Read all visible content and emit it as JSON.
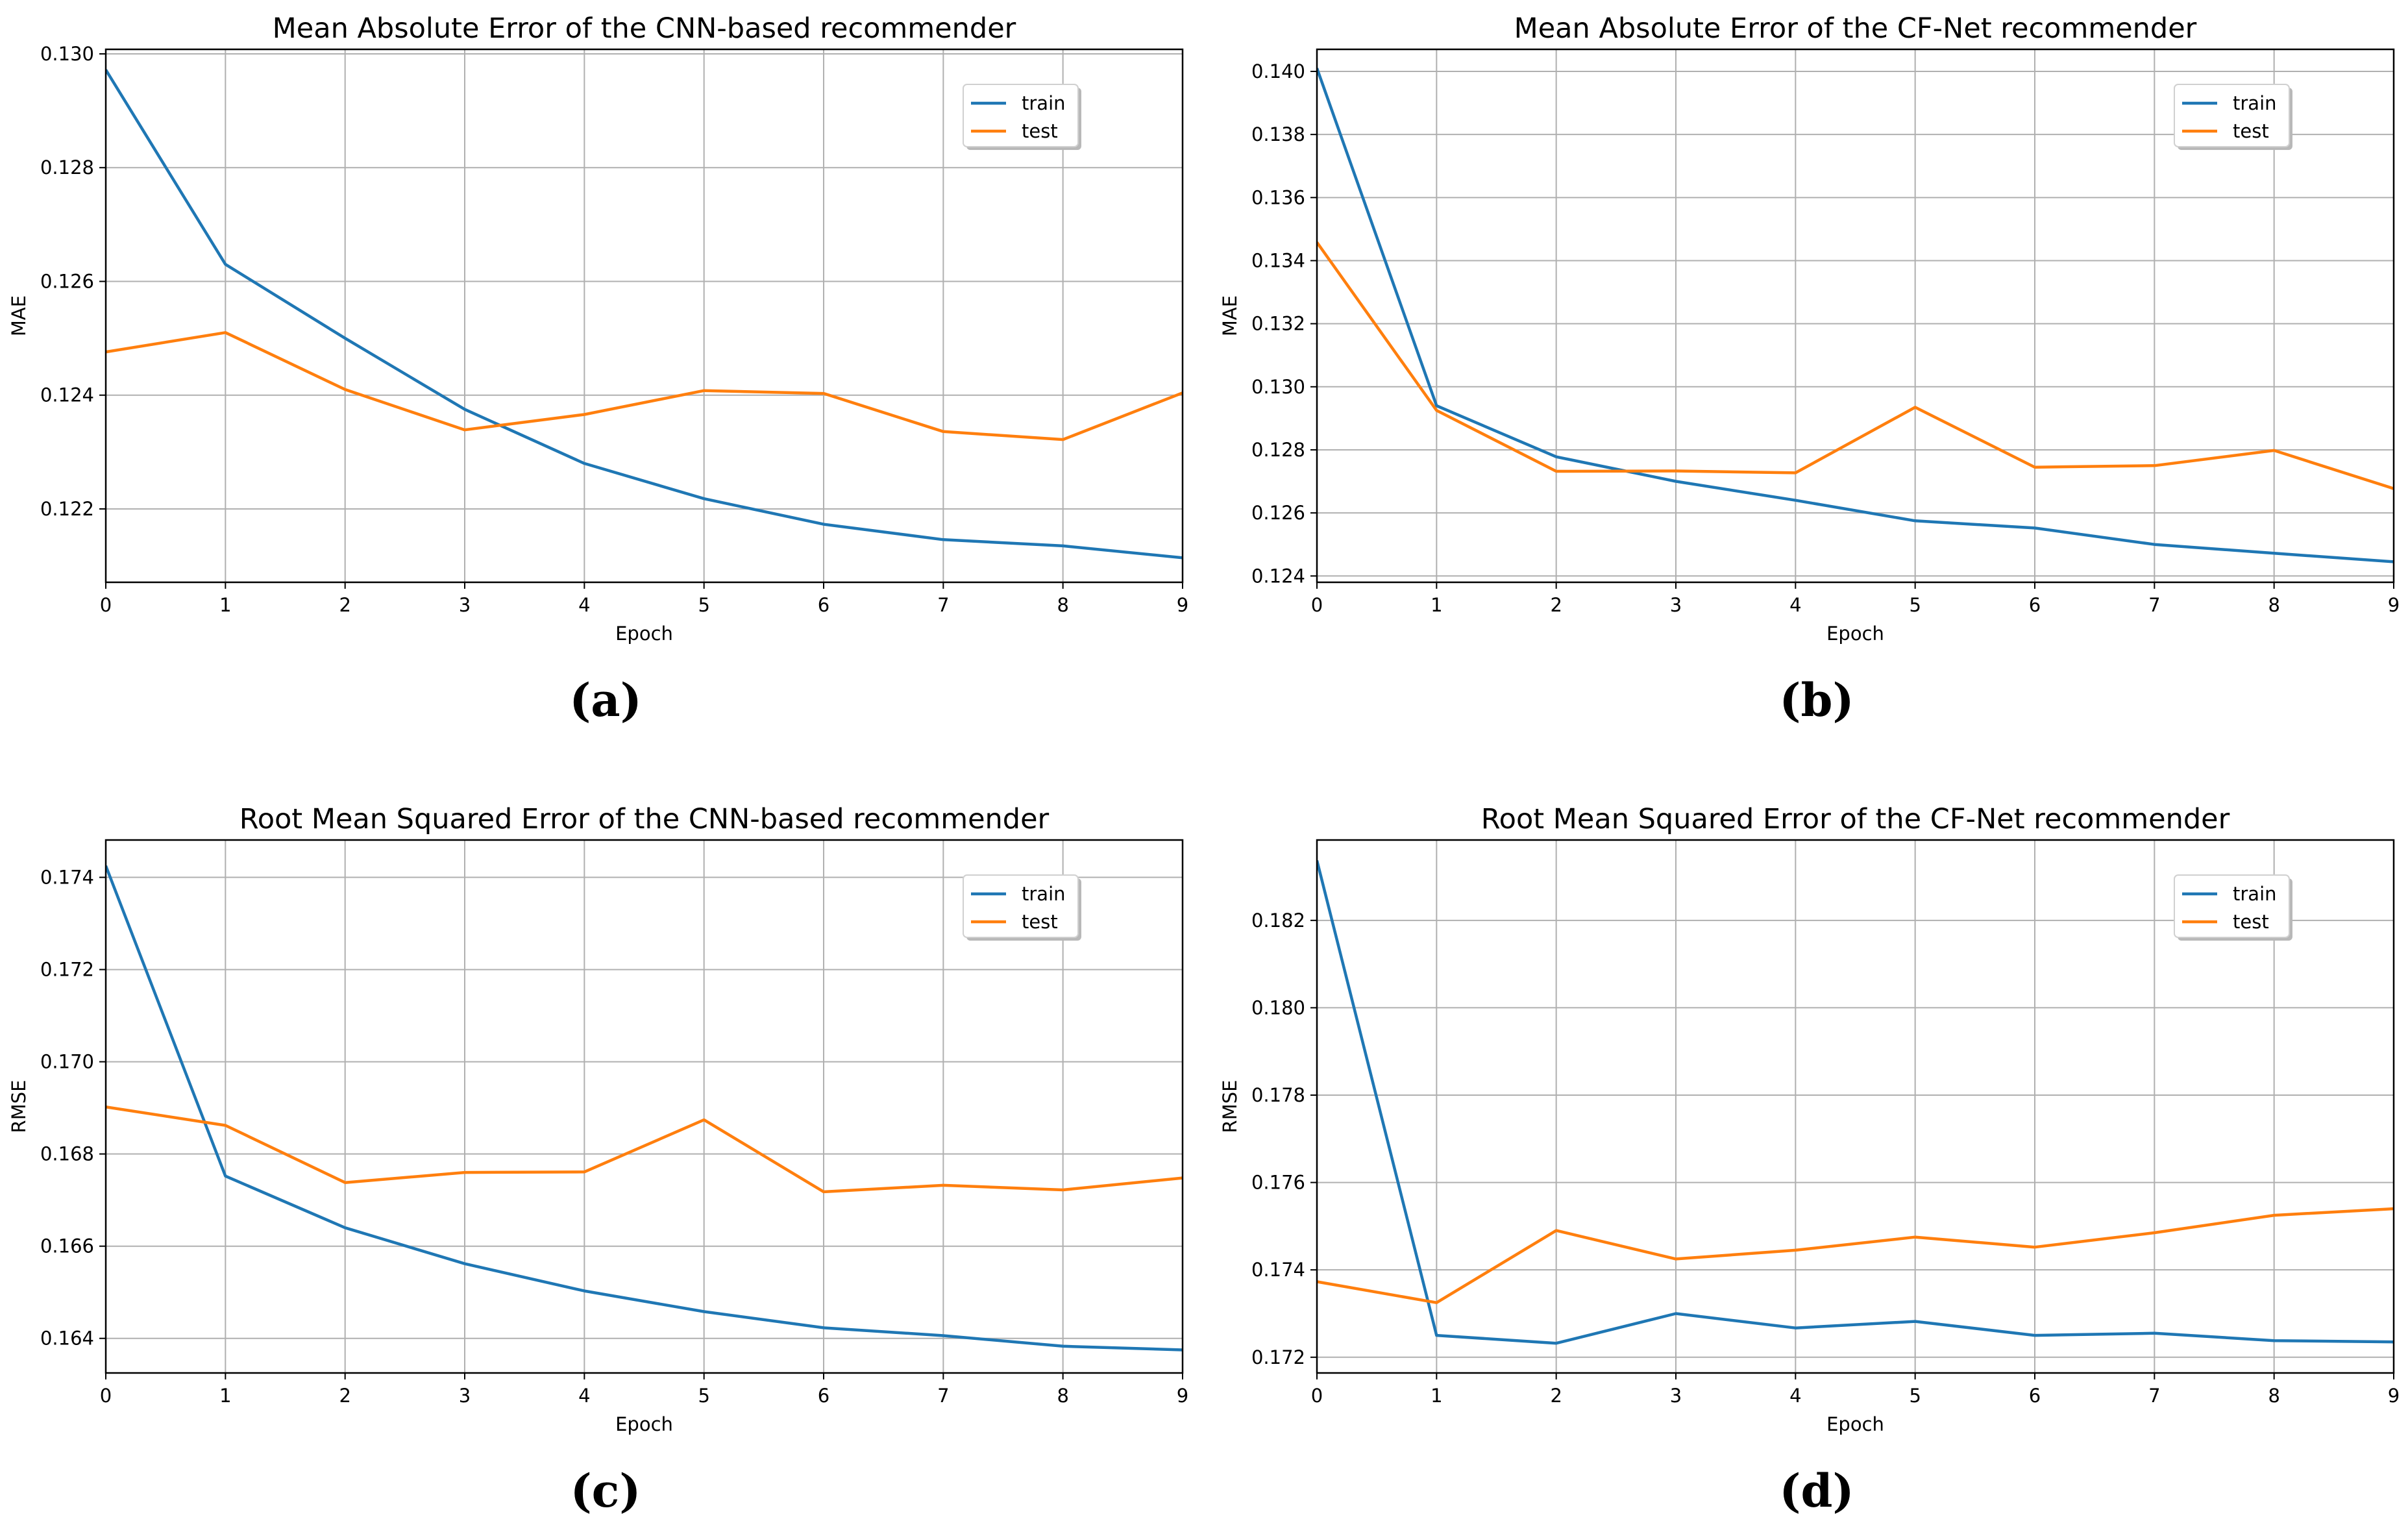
{
  "colors": {
    "train": "#1f77b4",
    "test": "#ff7f0e",
    "grid": "#b0b0b0",
    "axes": "#000000"
  },
  "chart_data": [
    {
      "type": "line",
      "panel": "a",
      "caption": "(a)",
      "title": "Mean Absolute Error of the CNN-based recommender",
      "xlabel": "Epoch",
      "ylabel": "MAE",
      "xlim": [
        0,
        9
      ],
      "ylim": [
        0.12071,
        0.13008
      ],
      "xticks": [
        0,
        1,
        2,
        3,
        4,
        5,
        6,
        7,
        8,
        9
      ],
      "yticks": [
        0.122,
        0.124,
        0.126,
        0.128,
        0.13
      ],
      "ytick_labels": [
        "0.122",
        "0.124",
        "0.126",
        "0.128",
        "0.130"
      ],
      "grid": true,
      "legend_position": "top-right",
      "x": [
        0,
        1,
        2,
        3,
        4,
        5,
        6,
        7,
        8,
        9
      ],
      "series": [
        {
          "name": "train",
          "color": "#1f77b4",
          "values": [
            0.12972,
            0.1263,
            0.125,
            0.12375,
            0.1228,
            0.12218,
            0.12173,
            0.12146,
            0.12135,
            0.12114
          ]
        },
        {
          "name": "test",
          "color": "#ff7f0e",
          "values": [
            0.12476,
            0.1251,
            0.1241,
            0.12339,
            0.12366,
            0.12408,
            0.12403,
            0.12336,
            0.12322,
            0.12404
          ]
        }
      ]
    },
    {
      "type": "line",
      "panel": "b",
      "caption": "(b)",
      "title": "Mean Absolute Error of the CF-Net recommender",
      "xlabel": "Epoch",
      "ylabel": "MAE",
      "xlim": [
        0,
        9
      ],
      "ylim": [
        0.1238,
        0.1407
      ],
      "xticks": [
        0,
        1,
        2,
        3,
        4,
        5,
        6,
        7,
        8,
        9
      ],
      "yticks": [
        0.124,
        0.126,
        0.128,
        0.13,
        0.132,
        0.134,
        0.136,
        0.138,
        0.14
      ],
      "ytick_labels": [
        "0.124",
        "0.126",
        "0.128",
        "0.130",
        "0.132",
        "0.134",
        "0.136",
        "0.138",
        "0.140"
      ],
      "grid": true,
      "legend_position": "top-right",
      "x": [
        0,
        1,
        2,
        3,
        4,
        5,
        6,
        7,
        8,
        9
      ],
      "series": [
        {
          "name": "train",
          "color": "#1f77b4",
          "values": [
            0.1401,
            0.1294,
            0.12778,
            0.127,
            0.1264,
            0.12575,
            0.12552,
            0.125,
            0.12472,
            0.12445
          ]
        },
        {
          "name": "test",
          "color": "#ff7f0e",
          "values": [
            0.13458,
            0.12925,
            0.12732,
            0.12733,
            0.12727,
            0.12935,
            0.12745,
            0.1275,
            0.12798,
            0.12677
          ]
        }
      ]
    },
    {
      "type": "line",
      "panel": "c",
      "caption": "(c)",
      "title": "Root Mean Squared Error of the CNN-based recommender",
      "xlabel": "Epoch",
      "ylabel": "RMSE",
      "xlim": [
        0,
        9
      ],
      "ylim": [
        0.16325,
        0.17481
      ],
      "xticks": [
        0,
        1,
        2,
        3,
        4,
        5,
        6,
        7,
        8,
        9
      ],
      "yticks": [
        0.164,
        0.166,
        0.168,
        0.17,
        0.172,
        0.174
      ],
      "ytick_labels": [
        "0.164",
        "0.166",
        "0.168",
        "0.170",
        "0.172",
        "0.174"
      ],
      "grid": true,
      "legend_position": "top-right",
      "x": [
        0,
        1,
        2,
        3,
        4,
        5,
        6,
        7,
        8,
        9
      ],
      "series": [
        {
          "name": "train",
          "color": "#1f77b4",
          "values": [
            0.17425,
            0.16752,
            0.1664,
            0.16562,
            0.16503,
            0.16458,
            0.16423,
            0.16406,
            0.16383,
            0.16375
          ]
        },
        {
          "name": "test",
          "color": "#ff7f0e",
          "values": [
            0.16902,
            0.16862,
            0.16738,
            0.1676,
            0.16761,
            0.16874,
            0.16718,
            0.16732,
            0.16722,
            0.16748
          ]
        }
      ]
    },
    {
      "type": "line",
      "panel": "d",
      "caption": "(d)",
      "title": "Root Mean Squared Error of the CF-Net recommender",
      "xlabel": "Epoch",
      "ylabel": "RMSE",
      "xlim": [
        0,
        9
      ],
      "ylim": [
        0.17164,
        0.18384
      ],
      "xticks": [
        0,
        1,
        2,
        3,
        4,
        5,
        6,
        7,
        8,
        9
      ],
      "yticks": [
        0.172,
        0.174,
        0.176,
        0.178,
        0.18,
        0.182
      ],
      "ytick_labels": [
        "0.172",
        "0.174",
        "0.176",
        "0.178",
        "0.180",
        "0.182"
      ],
      "grid": true,
      "legend_position": "top-right",
      "x": [
        0,
        1,
        2,
        3,
        4,
        5,
        6,
        7,
        8,
        9
      ],
      "series": [
        {
          "name": "train",
          "color": "#1f77b4",
          "values": [
            0.18337,
            0.1725,
            0.17232,
            0.173,
            0.17267,
            0.17282,
            0.1725,
            0.17255,
            0.17238,
            0.17235
          ]
        },
        {
          "name": "test",
          "color": "#ff7f0e",
          "values": [
            0.17373,
            0.17325,
            0.1749,
            0.17425,
            0.17445,
            0.17475,
            0.17452,
            0.17485,
            0.17525,
            0.1754
          ]
        }
      ]
    }
  ]
}
